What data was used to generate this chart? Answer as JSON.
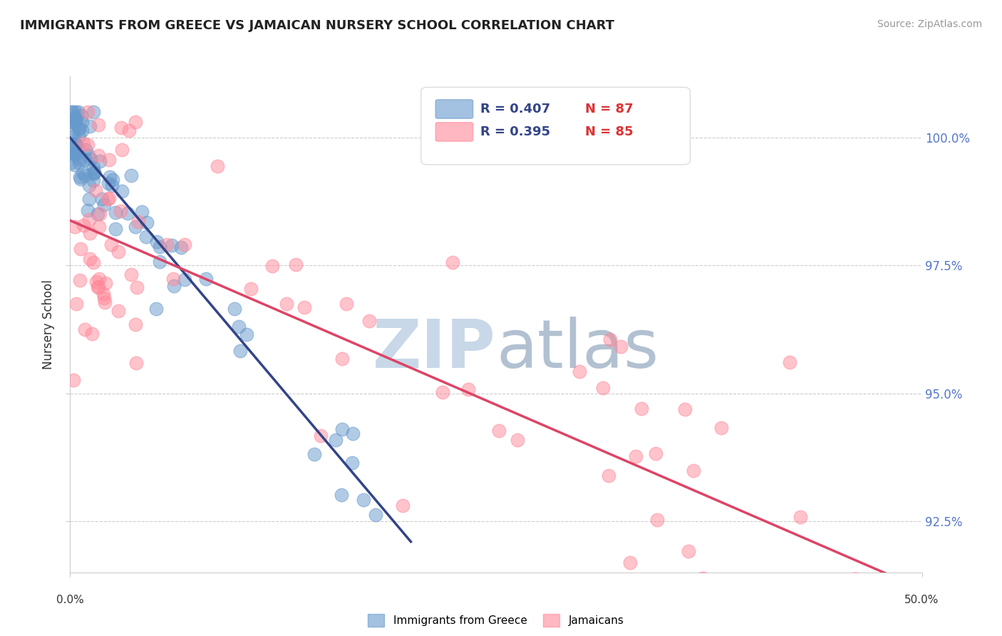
{
  "title": "IMMIGRANTS FROM GREECE VS JAMAICAN NURSERY SCHOOL CORRELATION CHART",
  "source": "Source: ZipAtlas.com",
  "ylabel": "Nursery School",
  "yticks": [
    92.5,
    95.0,
    97.5,
    100.0
  ],
  "ytick_labels": [
    "92.5%",
    "95.0%",
    "97.5%",
    "100.0%"
  ],
  "xmin": 0.0,
  "xmax": 50.0,
  "ymin": 91.5,
  "ymax": 101.2,
  "legend_blue_r": "R = 0.407",
  "legend_blue_n": "N = 87",
  "legend_pink_r": "R = 0.395",
  "legend_pink_n": "N = 85",
  "legend_blue_label": "Immigrants from Greece",
  "legend_pink_label": "Jamaicans",
  "blue_color": "#6699CC",
  "pink_color": "#FF8899",
  "trend_blue_color": "#334488",
  "trend_pink_color": "#DD4466",
  "watermark_zip_color": "#C8D8E8",
  "watermark_atlas_color": "#AABBCC"
}
